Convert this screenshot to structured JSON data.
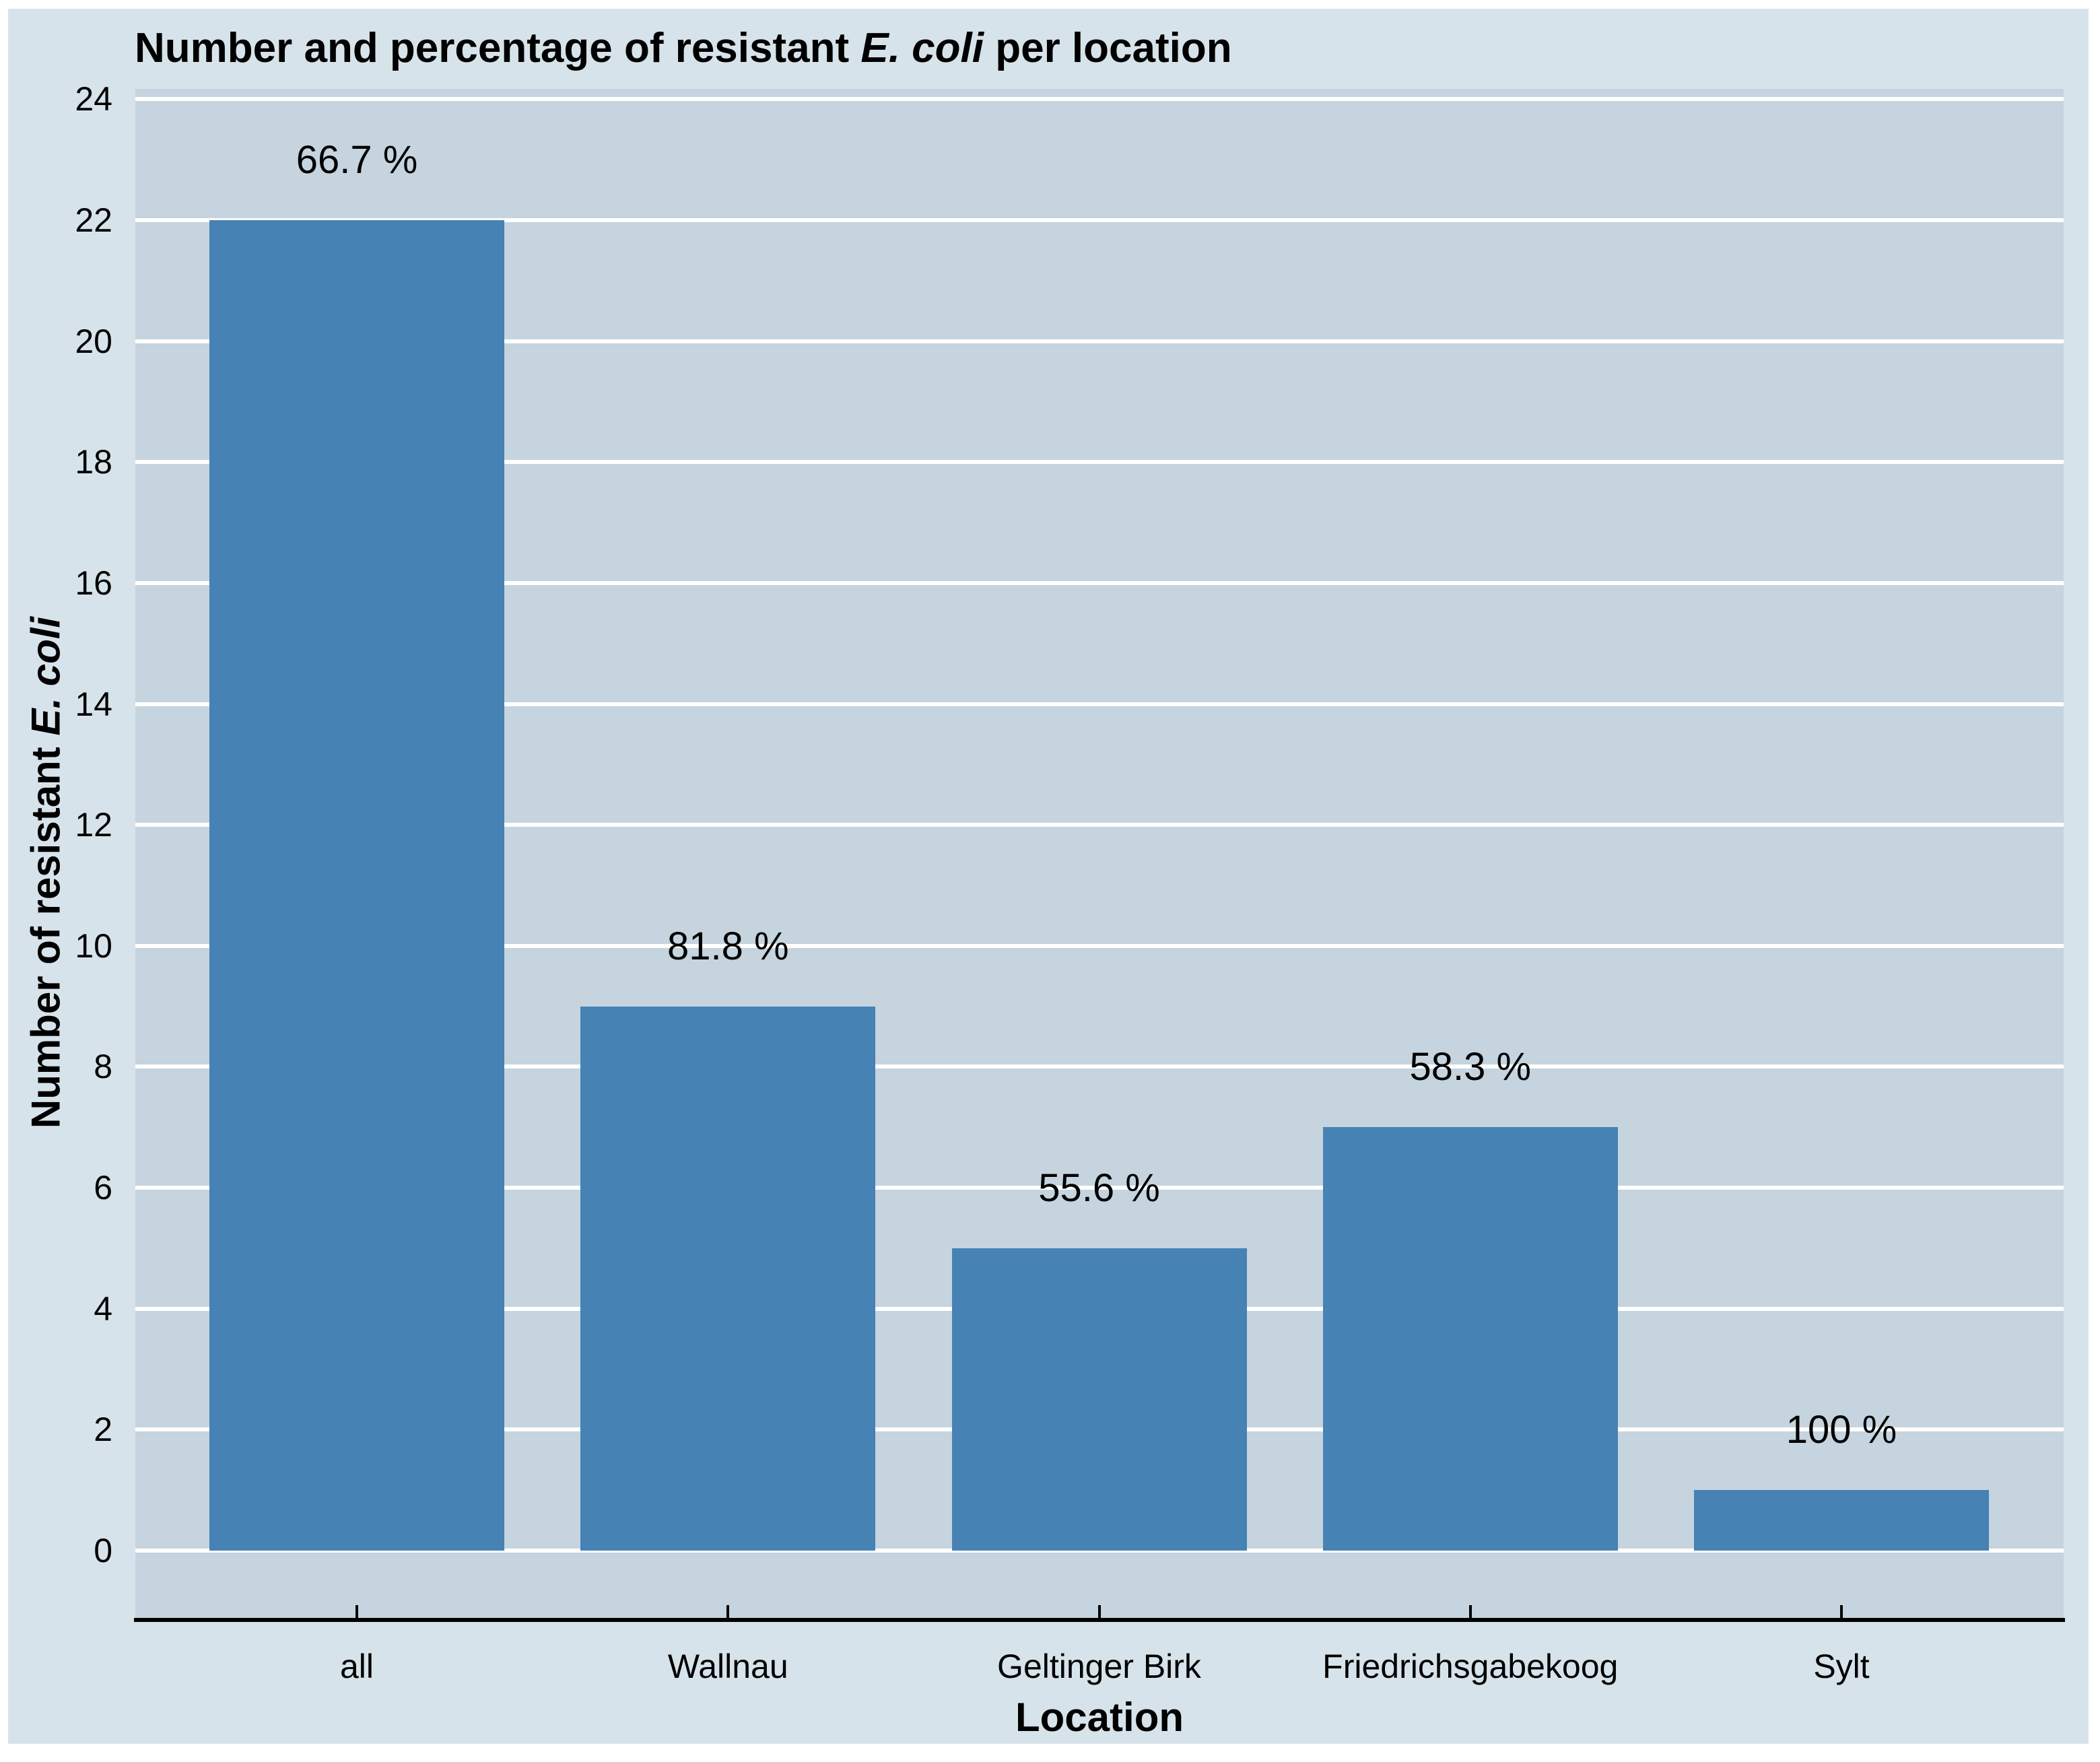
{
  "title": {
    "prefix": "Number and percentage of resistant ",
    "italic": "E. coli",
    "suffix": " per location"
  },
  "y_axis": {
    "label_prefix": "Number of resistant ",
    "label_italic": "E. coli"
  },
  "x_axis": {
    "label": "Location"
  },
  "chart_data": {
    "type": "bar",
    "title": "Number and percentage of resistant E. coli per location",
    "xlabel": "Location",
    "ylabel": "Number of resistant E. coli",
    "categories": [
      "all",
      "Wallnau",
      "Geltinger Birk",
      "Friedrichsgabekoog",
      "Sylt"
    ],
    "values": [
      22,
      9,
      5,
      7,
      1
    ],
    "bar_labels": [
      "66.7 %",
      "81.8 %",
      "55.6 %",
      "58.3 %",
      "100 %"
    ],
    "ylim": [
      0,
      24
    ],
    "yticks": [
      0,
      2,
      4,
      6,
      8,
      10,
      12,
      14,
      16,
      18,
      20,
      22,
      24
    ],
    "grid": "horizontal",
    "legend": "none",
    "colors": {
      "bar": "#4682b4",
      "panel": "#c5d4de",
      "canvas": "#d7e3ea",
      "gridline": "#ffffff",
      "axis_line": "#000000",
      "text": "#000000"
    }
  }
}
